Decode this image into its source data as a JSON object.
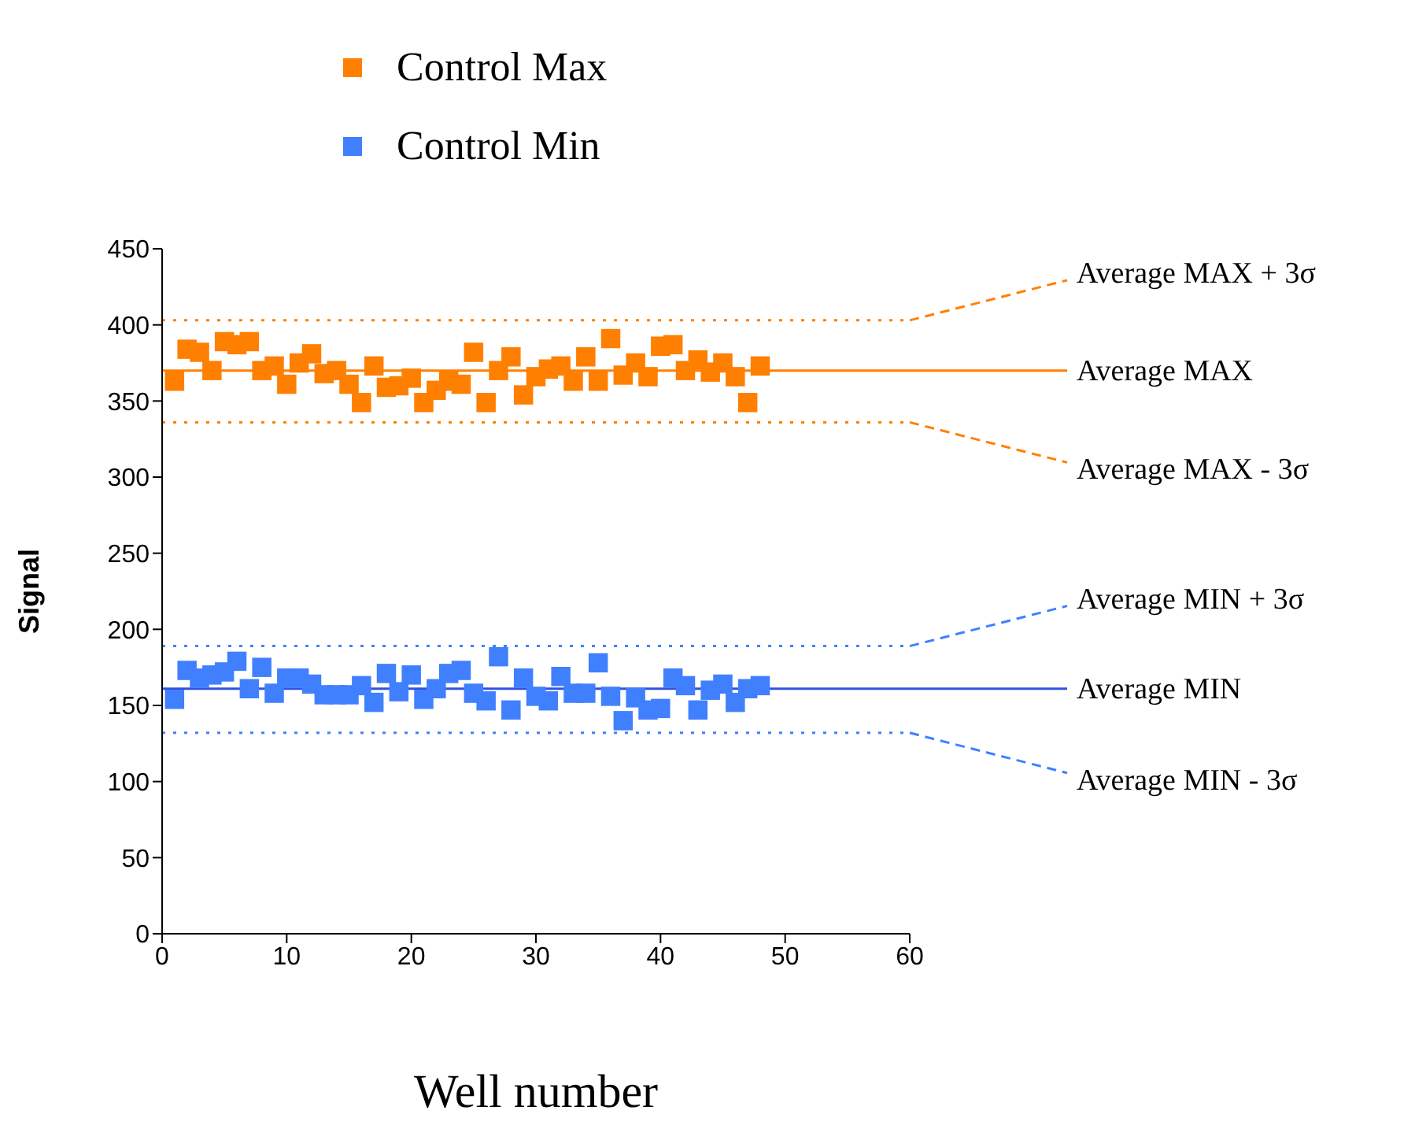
{
  "chart_data": {
    "type": "scatter",
    "xlabel": "Well number",
    "ylabel": "Signal",
    "x": [
      1,
      2,
      3,
      4,
      5,
      6,
      7,
      8,
      9,
      10,
      11,
      12,
      13,
      14,
      15,
      16,
      17,
      18,
      19,
      20,
      21,
      22,
      23,
      24,
      25,
      26,
      27,
      28,
      29,
      30,
      31,
      32,
      33,
      34,
      35,
      36,
      37,
      38,
      39,
      40,
      41,
      42,
      43,
      44,
      45,
      46,
      47,
      48
    ],
    "series": [
      {
        "name": "Control Max",
        "color": "#ff7f00",
        "values": [
          363,
          384,
          382,
          370,
          389,
          387,
          389,
          370,
          373,
          361,
          375,
          381,
          368,
          370,
          361,
          349,
          373,
          359,
          360,
          365,
          349,
          357,
          363,
          361,
          382,
          349,
          370,
          379,
          354,
          366,
          371,
          373,
          363,
          379,
          363,
          391,
          367,
          375,
          366,
          386,
          387,
          370,
          377,
          369,
          375,
          366,
          349,
          373
        ]
      },
      {
        "name": "Control Min",
        "color": "#4080ff",
        "values": [
          154,
          173,
          168,
          170,
          172,
          179,
          161,
          175,
          158,
          168,
          168,
          164,
          157,
          157,
          157,
          163,
          152,
          171,
          159,
          170,
          154,
          161,
          171,
          173,
          158,
          153,
          182,
          147,
          168,
          156,
          153,
          169,
          158,
          158,
          178,
          156,
          140,
          155,
          147,
          148,
          168,
          163,
          147,
          160,
          164,
          152,
          161,
          163
        ]
      }
    ],
    "xlim": [
      0,
      60
    ],
    "xticks": [
      0,
      10,
      20,
      30,
      40,
      50,
      60
    ],
    "ylim": [
      0,
      450
    ],
    "yticks": [
      0,
      50,
      100,
      150,
      200,
      250,
      300,
      350,
      400,
      450
    ],
    "ref_lines": [
      {
        "axis": "y",
        "value": 403,
        "label": "Average MAX + 3σ",
        "color": "#ff7f00",
        "line_style": "dotted"
      },
      {
        "axis": "y",
        "value": 370,
        "label": "Average MAX",
        "color": "#ff7f00",
        "line_style": "solid"
      },
      {
        "axis": "y",
        "value": 336,
        "label": "Average MAX - 3σ",
        "color": "#ff7f00",
        "line_style": "dotted"
      },
      {
        "axis": "y",
        "value": 189,
        "label": "Average MIN + 3σ",
        "color": "#4080ff",
        "line_style": "dotted"
      },
      {
        "axis": "y",
        "value": 161,
        "label": "Average MIN",
        "color": "#3050e0",
        "line_style": "solid"
      },
      {
        "axis": "y",
        "value": 132,
        "label": "Average MIN - 3σ",
        "color": "#4080ff",
        "line_style": "dotted"
      }
    ],
    "marker": "square",
    "grid": false,
    "legend": "top"
  }
}
